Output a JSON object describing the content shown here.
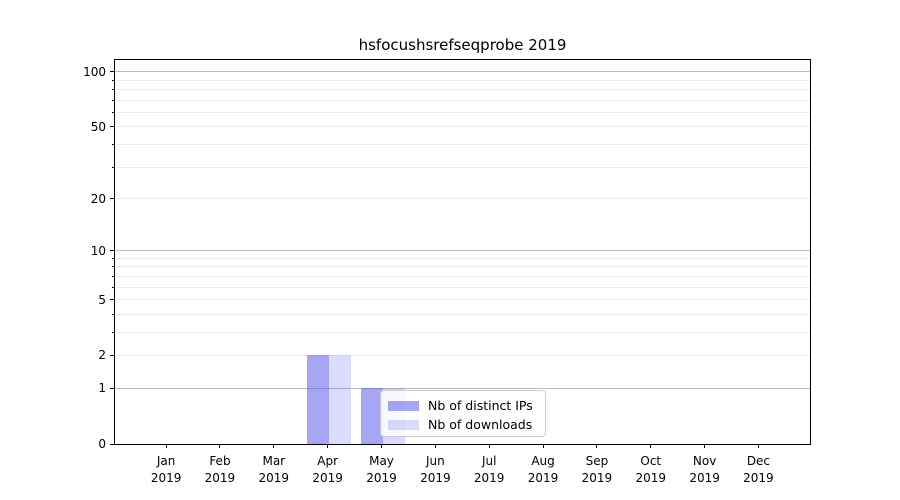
{
  "title": "hsfocushsrefseqprobe 2019",
  "legend": {
    "items": [
      "Nb of distinct IPs",
      "Nb of downloads"
    ]
  },
  "colors": {
    "bar_base": "#4d4de9",
    "alpha_distinct_ips": 0.5,
    "alpha_downloads": 0.2,
    "grid_major": "#bbbbbb",
    "grid_minor": "#ebebeb",
    "spine": "#000000",
    "text": "#000000",
    "legend_border": "#cccccc",
    "legend_bg": "rgba(255,255,255,0.8)"
  },
  "chart_data": {
    "type": "bar",
    "title": "hsfocushsrefseqprobe 2019",
    "categories": [
      "Jan",
      "Feb",
      "Mar",
      "Apr",
      "May",
      "Jun",
      "Jul",
      "Aug",
      "Sep",
      "Oct",
      "Nov",
      "Dec"
    ],
    "category_year": "2019",
    "series": [
      {
        "name": "Nb of distinct IPs",
        "values": [
          0,
          0,
          0,
          2,
          1,
          0,
          0,
          0,
          0,
          0,
          0,
          0
        ]
      },
      {
        "name": "Nb of downloads",
        "values": [
          0,
          0,
          0,
          2,
          1,
          0,
          0,
          0,
          0,
          0,
          0,
          0
        ]
      }
    ],
    "xlabel": "",
    "ylabel": "",
    "yscale": "log1p",
    "yticks": [
      0,
      1,
      2,
      5,
      10,
      20,
      50,
      100
    ],
    "yticks_major_grid": [
      1,
      10,
      100
    ],
    "yticks_minor_grid": [
      2,
      3,
      4,
      5,
      6,
      7,
      8,
      9,
      20,
      30,
      40,
      50,
      60,
      70,
      80,
      90
    ],
    "ylim": [
      0,
      116
    ],
    "grid": "both",
    "legend_position": "lower-center"
  }
}
